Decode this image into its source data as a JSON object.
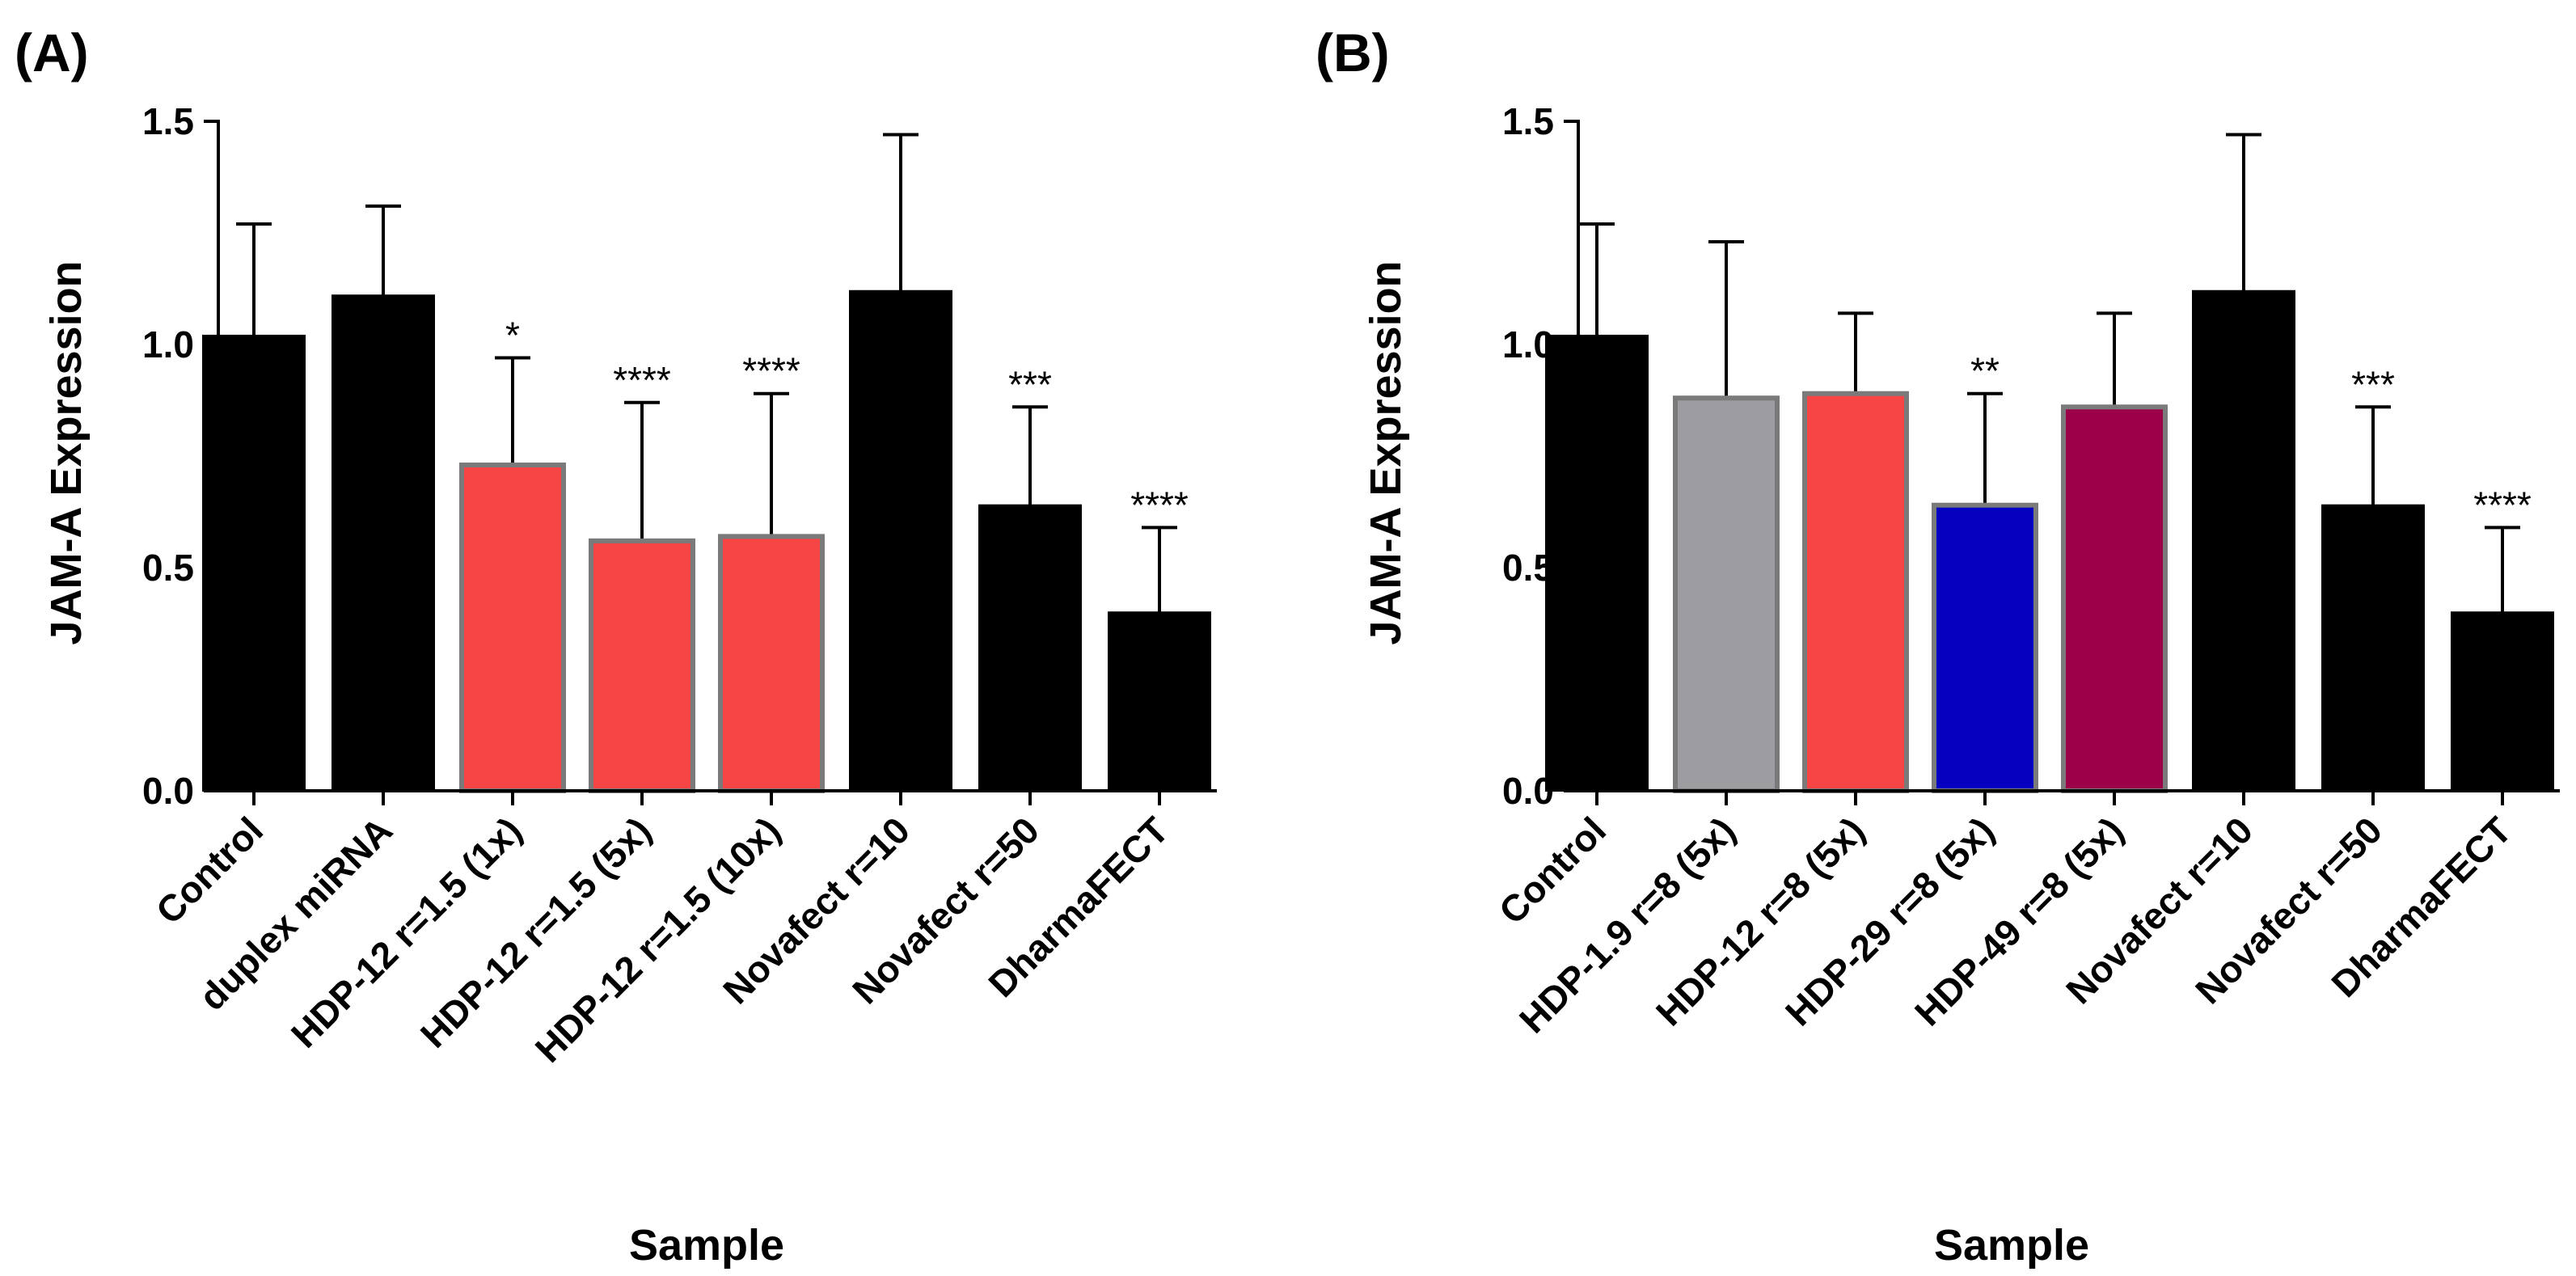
{
  "colors": {
    "black": "#000000",
    "red": "#f74545",
    "gray": "#9d9ca1",
    "blue": "#0500c0",
    "crimson": "#9b0048",
    "border": "#7a7a7a"
  },
  "chart_data": [
    {
      "type": "bar",
      "panel_label": "(A)",
      "xlabel": "Sample",
      "ylabel": "JAM-A Expression",
      "ylim": [
        0,
        1.5
      ],
      "yticks": [
        "0.0",
        "0.5",
        "1.0",
        "1.5"
      ],
      "grid": false,
      "error_bars": "upper",
      "categories": [
        "Control",
        "duplex miRNA",
        "HDP-12 r=1.5 (1x)",
        "HDP-12 r=1.5 (5x)",
        "HDP-12 r=1.5 (10x)",
        "Novafect r=10",
        "Novafect r=50",
        "DharmaFECT"
      ],
      "values": [
        1.02,
        1.11,
        0.73,
        0.56,
        0.57,
        1.12,
        0.64,
        0.4
      ],
      "errors_upper": [
        1.27,
        1.31,
        0.97,
        0.87,
        0.89,
        1.47,
        0.86,
        0.59
      ],
      "significance": [
        "",
        "",
        "*",
        "****",
        "****",
        "",
        "***",
        "****"
      ],
      "bar_colors": [
        "black",
        "black",
        "red",
        "red",
        "red",
        "black",
        "black",
        "black"
      ]
    },
    {
      "type": "bar",
      "panel_label": "(B)",
      "xlabel": "Sample",
      "ylabel": "JAM-A Expression",
      "ylim": [
        0,
        1.5
      ],
      "yticks": [
        "0.0",
        "0.5",
        "1.0",
        "1.5"
      ],
      "grid": false,
      "error_bars": "upper",
      "categories": [
        "Control",
        "HDP-1.9 r=8 (5x)",
        "HDP-12 r=8 (5x)",
        "HDP-29 r=8 (5x)",
        "HDP-49 r=8 (5x)",
        "Novafect r=10",
        "Novafect r=50",
        "DharmaFECT"
      ],
      "values": [
        1.02,
        0.88,
        0.89,
        0.64,
        0.86,
        1.12,
        0.64,
        0.4
      ],
      "errors_upper": [
        1.27,
        1.23,
        1.07,
        0.89,
        1.07,
        1.47,
        0.86,
        0.59
      ],
      "significance": [
        "",
        "",
        "",
        "**",
        "",
        "",
        "***",
        "****"
      ],
      "bar_colors": [
        "black",
        "gray",
        "red",
        "blue",
        "crimson",
        "black",
        "black",
        "black"
      ]
    }
  ]
}
